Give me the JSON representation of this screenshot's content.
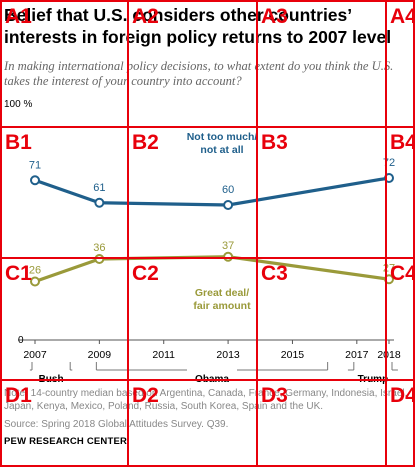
{
  "header": {
    "title": "Belief that U.S. considers other countries’ interests in foreign policy returns to 2007 level",
    "subtitle": "In making international policy decisions, to what extent do you think the U.S. takes the interest of your country into account?"
  },
  "chart_data": {
    "type": "line",
    "title": "Belief that U.S. considers other countries’ interests in foreign policy returns to 2007 level",
    "y_top_label": "100 %",
    "y_zero_label": "0",
    "ylim": [
      0,
      100
    ],
    "x_ticks": [
      "2007",
      "2009",
      "2011",
      "2013",
      "2015",
      "2017",
      "2018"
    ],
    "series": [
      {
        "name": "Not too much/ not at all",
        "name_lines": [
          "Not too much/",
          "not at all"
        ],
        "color": "#1f5f8b",
        "x": [
          2007,
          2009,
          2013,
          2018
        ],
        "values": [
          71,
          61,
          60,
          72
        ],
        "labels": [
          "71",
          "61",
          "60",
          "72"
        ]
      },
      {
        "name": "Great deal/ fair amount",
        "name_lines": [
          "Great deal/",
          "fair amount"
        ],
        "color": "#9a9a3a",
        "x": [
          2007,
          2009,
          2013,
          2018
        ],
        "values": [
          26,
          36,
          37,
          27
        ],
        "labels": [
          "26",
          "36",
          "37",
          "27"
        ]
      }
    ],
    "administrations": [
      {
        "name": "Bush",
        "from": 2007,
        "to": 2008
      },
      {
        "name": "Obama",
        "from": 2009,
        "to": 2016
      },
      {
        "name": "Trump",
        "from": 2017,
        "to": 2018
      }
    ]
  },
  "footer": {
    "notes": "Note: 14-country median based on Argentina, Canada, France, Germany, Indonesia, Israel, Japan, Kenya, Mexico, Poland, Russia, South Korea, Spain and the UK.",
    "source": "Source: Spring 2018 Global Attitudes Survey. Q39.",
    "brand": "PEW RESEARCH CENTER"
  },
  "overlay_grid": {
    "color": "#e8000b",
    "cells": [
      [
        "A1",
        "A2",
        "A3",
        "A4"
      ],
      [
        "B1",
        "B2",
        "B3",
        "B4"
      ],
      [
        "C1",
        "C2",
        "C3",
        "C4"
      ],
      [
        "D1",
        "D2",
        "D3",
        "D4"
      ]
    ]
  }
}
